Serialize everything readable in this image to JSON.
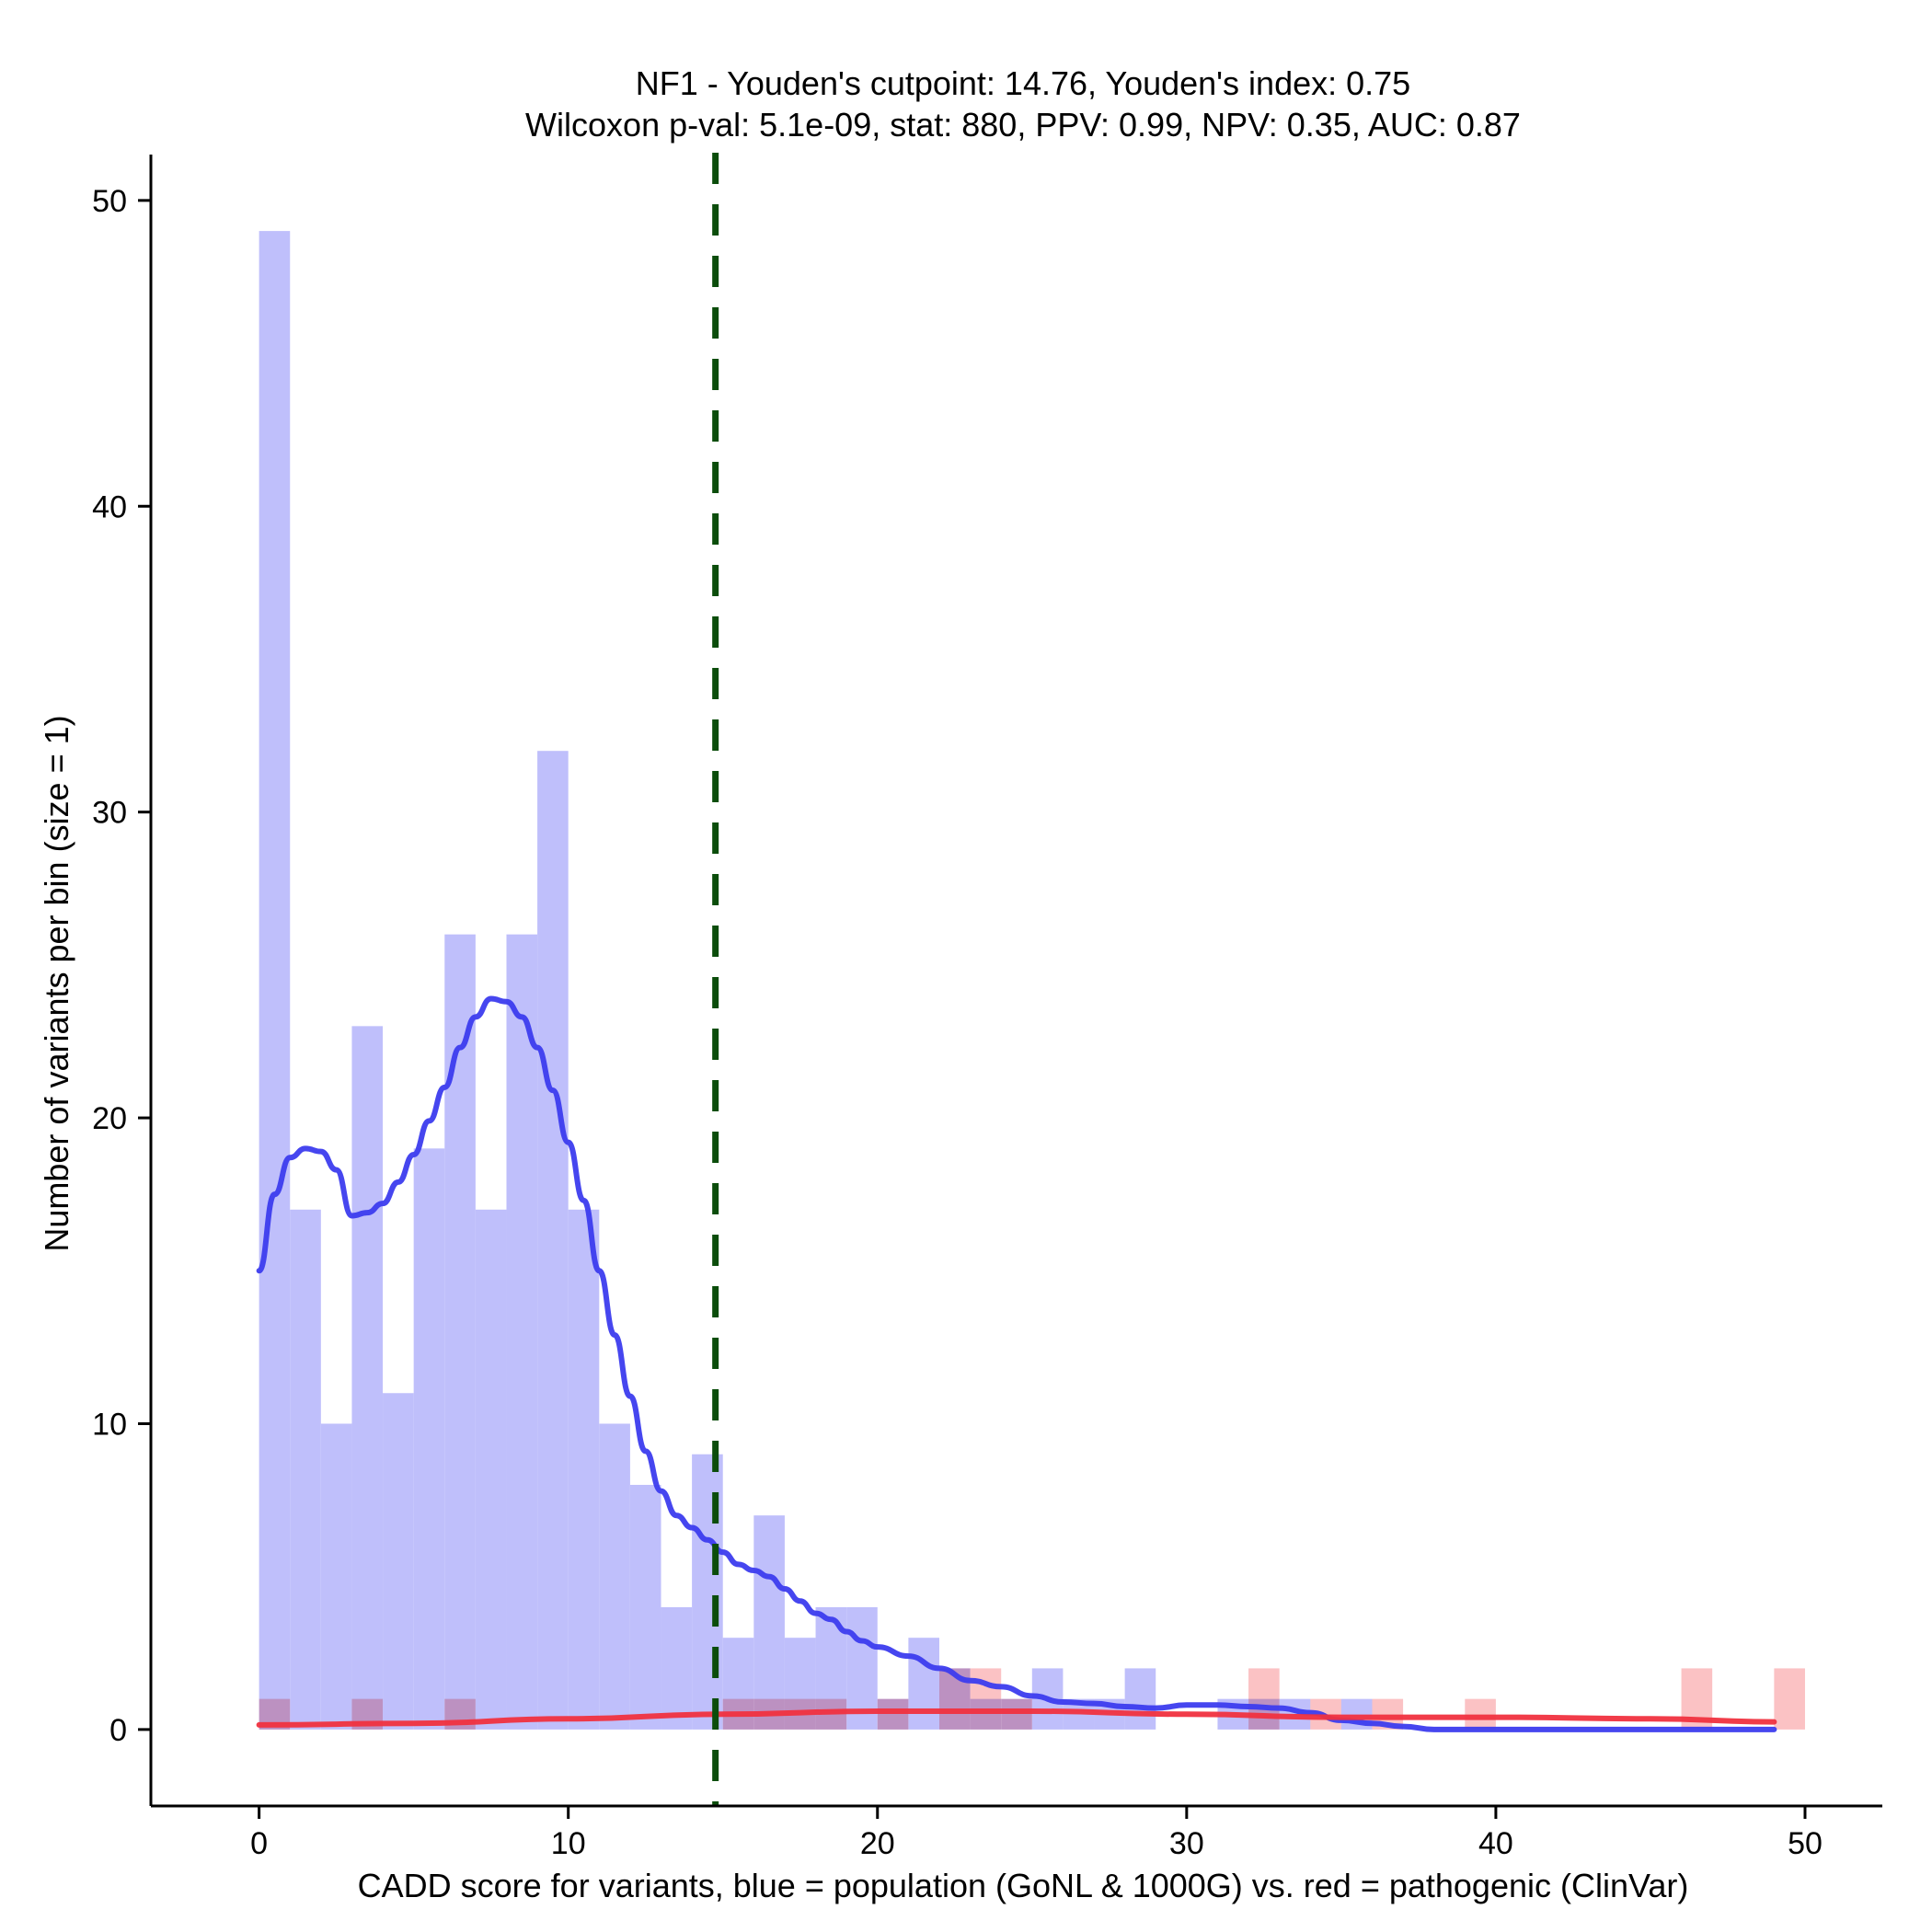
{
  "chart_data": {
    "type": "bar",
    "title_lines": [
      "NF1 - Youden's cutpoint: 14.76, Youden's index: 0.75",
      "Wilcoxon p-val: 5.1e-09, stat: 880, PPV: 0.99, NPV: 0.35, AUC: 0.87"
    ],
    "xlabel": "CADD score for variants, blue = population (GoNL & 1000G) vs. red = pathogenic (ClinVar)",
    "ylabel": "Number of variants per bin (size = 1)",
    "xlim": [
      -3.5,
      52.5
    ],
    "ylim": [
      -2.5,
      51.5
    ],
    "x_ticks": [
      0,
      10,
      20,
      30,
      40,
      50
    ],
    "y_ticks": [
      0,
      10,
      20,
      30,
      40,
      50
    ],
    "bin_width": 1,
    "grid": false,
    "colors": {
      "population_bar": "#bfbffb",
      "pathogenic_bar": "#fbbfc1",
      "population_curve": "#3c3cee",
      "pathogenic_curve": "#f0323f",
      "cutpoint_line": "#0b4d0b"
    },
    "cutpoint": 14.76,
    "series": [
      {
        "role": "population",
        "bins": [
          {
            "x": 0,
            "count": 49
          },
          {
            "x": 1,
            "count": 17
          },
          {
            "x": 2,
            "count": 10
          },
          {
            "x": 3,
            "count": 23
          },
          {
            "x": 4,
            "count": 11
          },
          {
            "x": 5,
            "count": 19
          },
          {
            "x": 6,
            "count": 26
          },
          {
            "x": 7,
            "count": 17
          },
          {
            "x": 8,
            "count": 26
          },
          {
            "x": 9,
            "count": 32
          },
          {
            "x": 10,
            "count": 17
          },
          {
            "x": 11,
            "count": 10
          },
          {
            "x": 12,
            "count": 8
          },
          {
            "x": 13,
            "count": 4
          },
          {
            "x": 14,
            "count": 9
          },
          {
            "x": 15,
            "count": 3
          },
          {
            "x": 16,
            "count": 7
          },
          {
            "x": 17,
            "count": 3
          },
          {
            "x": 18,
            "count": 4
          },
          {
            "x": 19,
            "count": 4
          },
          {
            "x": 20,
            "count": 1
          },
          {
            "x": 21,
            "count": 3
          },
          {
            "x": 22,
            "count": 2
          },
          {
            "x": 23,
            "count": 1
          },
          {
            "x": 24,
            "count": 1
          },
          {
            "x": 25,
            "count": 2
          },
          {
            "x": 26,
            "count": 1
          },
          {
            "x": 27,
            "count": 1
          },
          {
            "x": 28,
            "count": 2
          },
          {
            "x": 31,
            "count": 1
          },
          {
            "x": 32,
            "count": 1
          },
          {
            "x": 33,
            "count": 1
          },
          {
            "x": 35,
            "count": 1
          }
        ],
        "density_curve": [
          [
            0,
            15.0
          ],
          [
            0.5,
            17.5
          ],
          [
            1,
            18.7
          ],
          [
            1.5,
            19.0
          ],
          [
            2,
            18.9
          ],
          [
            2.5,
            18.3
          ],
          [
            3,
            16.8
          ],
          [
            3.5,
            16.9
          ],
          [
            4,
            17.2
          ],
          [
            4.5,
            17.9
          ],
          [
            5,
            18.8
          ],
          [
            5.5,
            19.9
          ],
          [
            6,
            21.0
          ],
          [
            6.5,
            22.3
          ],
          [
            7,
            23.3
          ],
          [
            7.5,
            23.9
          ],
          [
            8,
            23.8
          ],
          [
            8.5,
            23.3
          ],
          [
            9,
            22.3
          ],
          [
            9.5,
            20.9
          ],
          [
            10,
            19.2
          ],
          [
            10.5,
            17.3
          ],
          [
            11,
            15.0
          ],
          [
            11.5,
            12.9
          ],
          [
            12,
            10.9
          ],
          [
            12.5,
            9.1
          ],
          [
            13,
            7.8
          ],
          [
            13.5,
            7.0
          ],
          [
            14,
            6.6
          ],
          [
            14.5,
            6.2
          ],
          [
            15,
            5.8
          ],
          [
            15.5,
            5.4
          ],
          [
            16,
            5.2
          ],
          [
            16.5,
            5.0
          ],
          [
            17,
            4.6
          ],
          [
            17.5,
            4.2
          ],
          [
            18,
            3.8
          ],
          [
            18.5,
            3.6
          ],
          [
            19,
            3.2
          ],
          [
            19.5,
            2.9
          ],
          [
            20,
            2.7
          ],
          [
            21,
            2.4
          ],
          [
            22,
            2.0
          ],
          [
            23,
            1.6
          ],
          [
            24,
            1.4
          ],
          [
            25,
            1.1
          ],
          [
            26,
            0.9
          ],
          [
            27,
            0.85
          ],
          [
            28,
            0.75
          ],
          [
            29,
            0.7
          ],
          [
            30,
            0.8
          ],
          [
            31,
            0.8
          ],
          [
            32,
            0.75
          ],
          [
            33,
            0.7
          ],
          [
            34,
            0.55
          ],
          [
            35,
            0.3
          ],
          [
            36,
            0.2
          ],
          [
            37,
            0.1
          ],
          [
            38,
            0.0
          ],
          [
            40,
            0.0
          ],
          [
            45,
            0.0
          ],
          [
            49,
            0.0
          ]
        ]
      },
      {
        "role": "pathogenic",
        "bins": [
          {
            "x": 0,
            "count": 1
          },
          {
            "x": 3,
            "count": 1
          },
          {
            "x": 6,
            "count": 1
          },
          {
            "x": 15,
            "count": 1
          },
          {
            "x": 16,
            "count": 1
          },
          {
            "x": 17,
            "count": 1
          },
          {
            "x": 18,
            "count": 1
          },
          {
            "x": 20,
            "count": 1
          },
          {
            "x": 22,
            "count": 2
          },
          {
            "x": 23,
            "count": 2
          },
          {
            "x": 24,
            "count": 1
          },
          {
            "x": 32,
            "count": 2
          },
          {
            "x": 34,
            "count": 1
          },
          {
            "x": 36,
            "count": 1
          },
          {
            "x": 39,
            "count": 1
          },
          {
            "x": 46,
            "count": 2
          },
          {
            "x": 49,
            "count": 2
          }
        ],
        "density_curve": [
          [
            0,
            0.15
          ],
          [
            5,
            0.2
          ],
          [
            10,
            0.35
          ],
          [
            15,
            0.5
          ],
          [
            20,
            0.6
          ],
          [
            25,
            0.6
          ],
          [
            30,
            0.5
          ],
          [
            35,
            0.4
          ],
          [
            40,
            0.4
          ],
          [
            45,
            0.35
          ],
          [
            49,
            0.25
          ]
        ]
      }
    ]
  }
}
